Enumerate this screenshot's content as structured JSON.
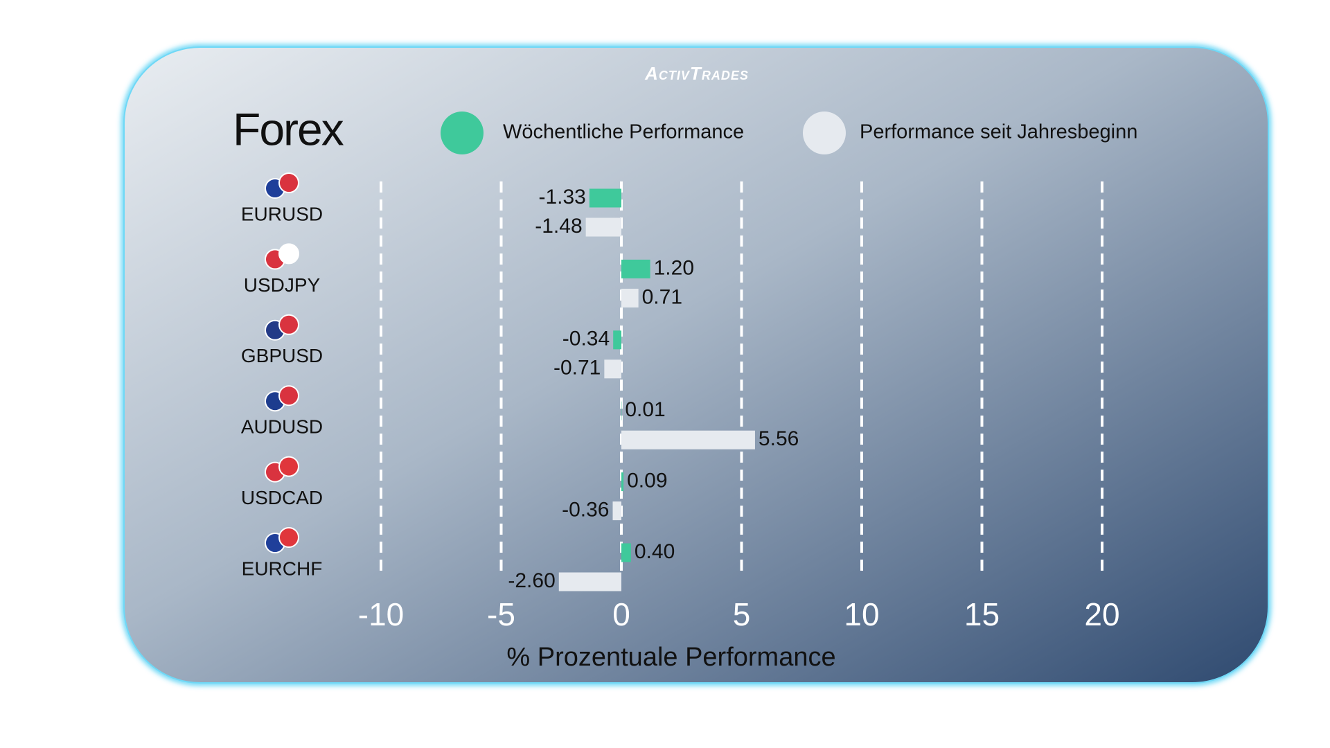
{
  "chart_data": {
    "type": "hbar",
    "brand": "ActivTrades",
    "title": "Forex",
    "xlabel": "% Prozentuale Performance",
    "categories": [
      "EURUSD",
      "USDJPY",
      "GBPUSD",
      "AUDUSD",
      "USDCAD",
      "EURCHF"
    ],
    "series": [
      {
        "name": "Wöchentliche Performance",
        "color": "#3fc99b",
        "values": [
          -1.33,
          1.2,
          -0.34,
          0.01,
          0.09,
          0.4
        ],
        "value_labels": [
          "-1.33",
          "1.20",
          "-0.34",
          "0.01",
          "0.09",
          "0.40"
        ]
      },
      {
        "name": "Performance seit Jahresbeginn",
        "color": "#e6eaef",
        "values": [
          -1.48,
          0.71,
          -0.71,
          5.56,
          -0.36,
          -2.6
        ],
        "value_labels": [
          "-1.48",
          "0.71",
          "-0.71",
          "5.56",
          "-0.36",
          "-2.60"
        ]
      }
    ],
    "xlim": [
      -10,
      20
    ],
    "xticks": [
      -10,
      -5,
      0,
      5,
      10,
      15,
      20
    ],
    "grid": true
  }
}
